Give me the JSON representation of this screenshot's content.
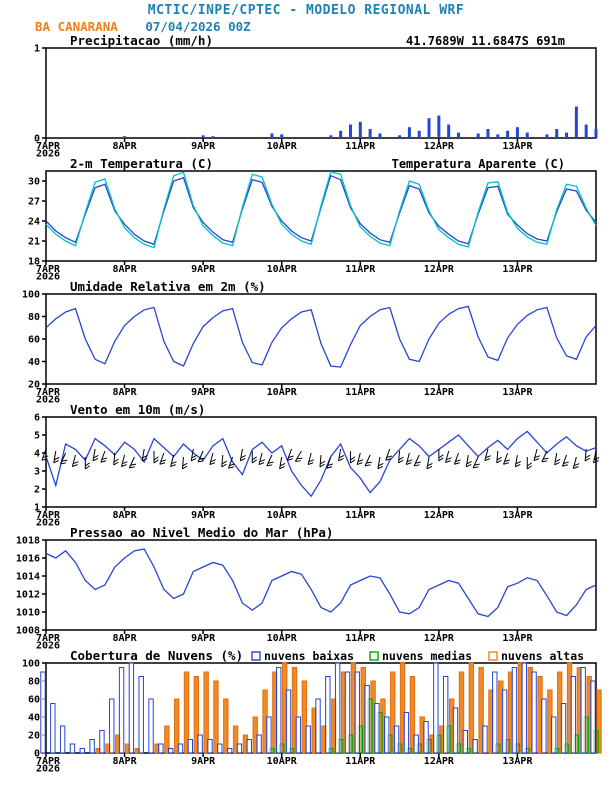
{
  "header": {
    "line1": "MCTIC/INPE/CPTEC - MODELO REGIONAL WRF",
    "station": "BA CANARANA",
    "run": "07/04/2026 00Z",
    "coords": "41.7689W 11.6847S 691m",
    "title_color": "#1e82b4",
    "accent_color": "#f08018"
  },
  "x_axis": {
    "hours_step": 3,
    "total_hours": 168,
    "year_label": "2026",
    "ticks": [
      {
        "hour": 0,
        "label": "7APR"
      },
      {
        "hour": 24,
        "label": "8APR"
      },
      {
        "hour": 48,
        "label": "9APR"
      },
      {
        "hour": 72,
        "label": "10APR"
      },
      {
        "hour": 96,
        "label": "11APR"
      },
      {
        "hour": 120,
        "label": "12APR"
      },
      {
        "hour": 144,
        "label": "13APR"
      }
    ]
  },
  "chart_data": [
    {
      "id": "precipitation",
      "type": "bar",
      "title": "Precipitacao (mm/h)",
      "ylim": [
        0,
        1
      ],
      "yticks": [
        0,
        1
      ],
      "right_label": {
        "text": "41.7689W 11.6847S 691m",
        "color": "#f08018"
      },
      "series": [
        {
          "name": "precipitation",
          "color": "#2545d5",
          "values": [
            0,
            0,
            0,
            0,
            0,
            0,
            0,
            0,
            0.02,
            0,
            0,
            0,
            0,
            0,
            0,
            0,
            0.03,
            0.02,
            0,
            0,
            0,
            0,
            0,
            0.05,
            0.04,
            0,
            0,
            0,
            0,
            0.03,
            0.08,
            0.15,
            0.18,
            0.1,
            0.05,
            0,
            0.03,
            0.12,
            0.08,
            0.22,
            0.25,
            0.15,
            0.06,
            0,
            0.05,
            0.1,
            0.04,
            0.08,
            0.12,
            0.06,
            0,
            0.04,
            0.1,
            0.06,
            0.35,
            0.15,
            0.1
          ]
        }
      ]
    },
    {
      "id": "temperature-2m",
      "type": "line",
      "title": "2-m Temperatura (C)",
      "ylim": [
        18,
        31.5
      ],
      "yticks": [
        18,
        21,
        24,
        27,
        30
      ],
      "right_label": {
        "text": "Temperatura Aparente (C)",
        "color": "#00c2c2"
      },
      "series": [
        {
          "name": "2m-temperature",
          "color": "#2545d5",
          "values": [
            24.0,
            22.5,
            21.5,
            20.8,
            25.0,
            29.0,
            29.5,
            25.5,
            23.5,
            22.0,
            21.0,
            20.5,
            25.5,
            30.0,
            30.5,
            26.0,
            23.8,
            22.3,
            21.2,
            20.8,
            25.8,
            30.2,
            29.8,
            26.2,
            24.0,
            22.5,
            21.5,
            21.0,
            26.0,
            30.8,
            30.2,
            26.0,
            23.6,
            22.2,
            21.2,
            20.8,
            25.2,
            29.3,
            28.8,
            25.2,
            23.2,
            22.0,
            21.0,
            20.6,
            25.0,
            29.0,
            29.2,
            25.0,
            23.4,
            22.1,
            21.3,
            21.0,
            25.4,
            28.8,
            28.5,
            25.6,
            23.8
          ]
        },
        {
          "name": "apparent-temperature",
          "color": "#00c2c2",
          "values": [
            23.5,
            22.0,
            21.0,
            20.3,
            25.3,
            29.8,
            30.3,
            25.8,
            23.0,
            21.5,
            20.5,
            20.0,
            25.8,
            30.8,
            31.3,
            26.3,
            23.3,
            21.8,
            20.7,
            20.3,
            26.1,
            31.0,
            30.6,
            26.5,
            23.5,
            22.0,
            21.0,
            20.5,
            26.3,
            31.4,
            31.0,
            26.3,
            23.1,
            21.7,
            20.7,
            20.3,
            25.5,
            30.0,
            29.5,
            25.5,
            22.7,
            21.5,
            20.5,
            20.1,
            25.3,
            29.7,
            29.9,
            25.3,
            22.9,
            21.6,
            20.8,
            20.5,
            25.7,
            29.5,
            29.2,
            25.9,
            23.3
          ]
        }
      ]
    },
    {
      "id": "relative-humidity-2m",
      "type": "line",
      "title": "Umidade Relativa em 2m (%)",
      "ylim": [
        20,
        100
      ],
      "yticks": [
        20,
        40,
        60,
        80,
        100
      ],
      "series": [
        {
          "name": "relative-humidity",
          "color": "#2545d5",
          "values": [
            70,
            78,
            84,
            87,
            60,
            42,
            38,
            58,
            72,
            80,
            86,
            88,
            58,
            40,
            36,
            56,
            71,
            79,
            85,
            87,
            57,
            39,
            37,
            57,
            70,
            78,
            84,
            86,
            56,
            36,
            35,
            55,
            72,
            80,
            86,
            88,
            60,
            42,
            40,
            60,
            74,
            82,
            87,
            89,
            62,
            44,
            41,
            61,
            73,
            81,
            86,
            88,
            61,
            45,
            42,
            62,
            72
          ]
        }
      ]
    },
    {
      "id": "wind-10m",
      "type": "line",
      "title": "Vento em 10m (m/s)",
      "ylim": [
        1,
        6
      ],
      "yticks": [
        1,
        2,
        3,
        4,
        5,
        6
      ],
      "series": [
        {
          "name": "wind-speed",
          "color": "#2545d5",
          "values": [
            3.8,
            2.2,
            4.5,
            4.2,
            3.6,
            4.8,
            4.4,
            3.9,
            4.6,
            4.2,
            3.5,
            4.8,
            4.3,
            3.8,
            4.5,
            4.0,
            3.6,
            4.4,
            4.8,
            3.5,
            2.8,
            4.2,
            4.6,
            4.0,
            4.4,
            3.0,
            2.2,
            1.6,
            2.5,
            3.8,
            4.5,
            3.2,
            2.6,
            1.8,
            2.4,
            3.6,
            4.2,
            4.8,
            4.4,
            3.8,
            4.2,
            4.6,
            5.0,
            4.4,
            3.8,
            4.3,
            4.7,
            4.2,
            4.8,
            5.2,
            4.6,
            4.0,
            4.5,
            4.9,
            4.4,
            4.1,
            4.3
          ]
        }
      ],
      "barbs": {
        "color": "#000000",
        "level": 4.0,
        "angles_deg": [
          250,
          260,
          245,
          255,
          270,
          260,
          250,
          265,
          255,
          245,
          260,
          270,
          250,
          255,
          265,
          260,
          245,
          255,
          265,
          250,
          260,
          270,
          255,
          245,
          260,
          250,
          240,
          255,
          265,
          250,
          260,
          270,
          255,
          245,
          260,
          250,
          265,
          255,
          245,
          260,
          270,
          255,
          250,
          260,
          245,
          255,
          265,
          250,
          260,
          270,
          255,
          245,
          260,
          250,
          255,
          265,
          258
        ]
      }
    },
    {
      "id": "mslp",
      "type": "line",
      "title": "Pressao ao Nivel Medio do Mar (hPa)",
      "ylim": [
        1008,
        1018
      ],
      "yticks": [
        1008,
        1010,
        1012,
        1014,
        1016,
        1018
      ],
      "series": [
        {
          "name": "mean-sea-level-pressure",
          "color": "#2545d5",
          "values": [
            1016.5,
            1016.0,
            1016.8,
            1015.5,
            1013.5,
            1012.5,
            1013.0,
            1015.0,
            1016.0,
            1016.8,
            1017.0,
            1015.0,
            1012.5,
            1011.5,
            1012.0,
            1014.5,
            1015.0,
            1015.5,
            1015.2,
            1013.5,
            1011.0,
            1010.2,
            1011.0,
            1013.5,
            1014.0,
            1014.5,
            1014.2,
            1012.5,
            1010.5,
            1010.0,
            1011.0,
            1013.0,
            1013.5,
            1014.0,
            1013.8,
            1012.0,
            1010.0,
            1009.8,
            1010.5,
            1012.5,
            1013.0,
            1013.5,
            1013.2,
            1011.5,
            1009.8,
            1009.5,
            1010.5,
            1012.8,
            1013.2,
            1013.8,
            1013.5,
            1011.8,
            1010.0,
            1009.6,
            1010.8,
            1012.5,
            1013.0
          ]
        }
      ]
    },
    {
      "id": "cloud-cover",
      "type": "bar-group",
      "title": "Cobertura de Nuvens (%)",
      "ylim": [
        0,
        100
      ],
      "yticks": [
        0,
        20,
        40,
        60,
        80,
        100
      ],
      "legend": [
        {
          "label": "nuvens baixas",
          "color": "#2545d5"
        },
        {
          "label": "nuvens medias",
          "color": "#00a800"
        },
        {
          "label": "nuvens altas",
          "color": "#f08018"
        }
      ],
      "series": [
        {
          "name": "low-clouds",
          "color": "#2545d5",
          "fill": "rgba(255,255,255,0.7)",
          "values": [
            90,
            55,
            30,
            10,
            5,
            15,
            25,
            60,
            95,
            100,
            85,
            60,
            10,
            5,
            10,
            15,
            20,
            15,
            10,
            5,
            10,
            15,
            20,
            40,
            95,
            70,
            40,
            30,
            60,
            85,
            100,
            90,
            90,
            75,
            55,
            40,
            30,
            45,
            20,
            35,
            100,
            85,
            50,
            25,
            15,
            30,
            90,
            70,
            95,
            100,
            90,
            60,
            40,
            55,
            85,
            95,
            80
          ]
        },
        {
          "name": "medium-clouds",
          "color": "#00a800",
          "fill": "rgba(0,168,0,0.18)",
          "values": [
            0,
            0,
            0,
            0,
            0,
            0,
            0,
            0,
            0,
            0,
            0,
            0,
            0,
            0,
            0,
            0,
            0,
            0,
            0,
            0,
            0,
            0,
            0,
            5,
            10,
            5,
            0,
            0,
            0,
            5,
            15,
            20,
            30,
            60,
            45,
            20,
            10,
            5,
            10,
            15,
            20,
            30,
            10,
            5,
            0,
            0,
            10,
            15,
            10,
            5,
            0,
            0,
            5,
            10,
            20,
            40,
            25
          ]
        },
        {
          "name": "high-clouds",
          "color": "#e07010",
          "fill": "#f08a28",
          "values": [
            0,
            0,
            0,
            0,
            0,
            5,
            10,
            20,
            10,
            5,
            0,
            10,
            30,
            60,
            90,
            85,
            90,
            80,
            60,
            30,
            20,
            40,
            70,
            90,
            100,
            95,
            80,
            50,
            30,
            60,
            90,
            100,
            95,
            80,
            60,
            90,
            100,
            85,
            40,
            20,
            30,
            60,
            90,
            100,
            95,
            70,
            80,
            90,
            100,
            95,
            85,
            70,
            90,
            100,
            95,
            85,
            70
          ]
        }
      ]
    }
  ]
}
